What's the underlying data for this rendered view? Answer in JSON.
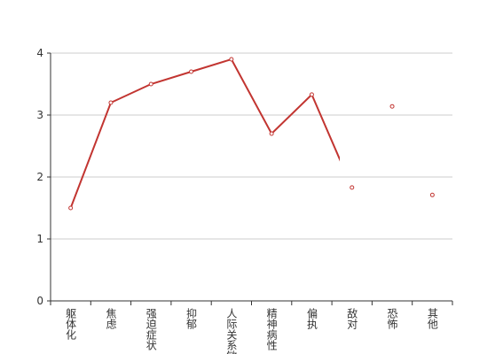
{
  "chart_data": {
    "type": "line",
    "categories": [
      "躯体化",
      "焦虑",
      "强迫症状",
      "抑郁",
      "人际关系敏感",
      "精神病性",
      "偏执",
      "敌对",
      "恐怖",
      "其他"
    ],
    "values": [
      1.5,
      3.2,
      3.5,
      3.7,
      3.9,
      2.7,
      3.33,
      1.83,
      3.14,
      1.71
    ],
    "color": "#c23531",
    "ylim": [
      0,
      4
    ],
    "yticks": [
      0,
      1,
      2,
      3,
      4
    ],
    "grid": true
  }
}
